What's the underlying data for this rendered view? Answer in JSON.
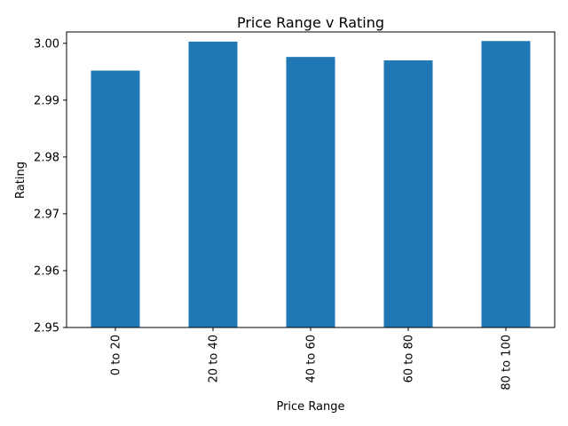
{
  "chart_data": {
    "type": "bar",
    "title": "Price Range v Rating",
    "xlabel": "Price Range",
    "ylabel": "Rating",
    "categories": [
      "0 to 20",
      "20 to 40",
      "40 to 60",
      "60 to 80",
      "80 to 100"
    ],
    "values": [
      2.9952,
      3.0003,
      2.9976,
      2.997,
      3.0004
    ],
    "ylim": [
      2.95,
      3.002
    ],
    "yticks": [
      "2.95",
      "2.96",
      "2.97",
      "2.98",
      "2.99",
      "3.00"
    ],
    "bar_color": "#1f77b4",
    "grid": false,
    "legend": "none"
  }
}
